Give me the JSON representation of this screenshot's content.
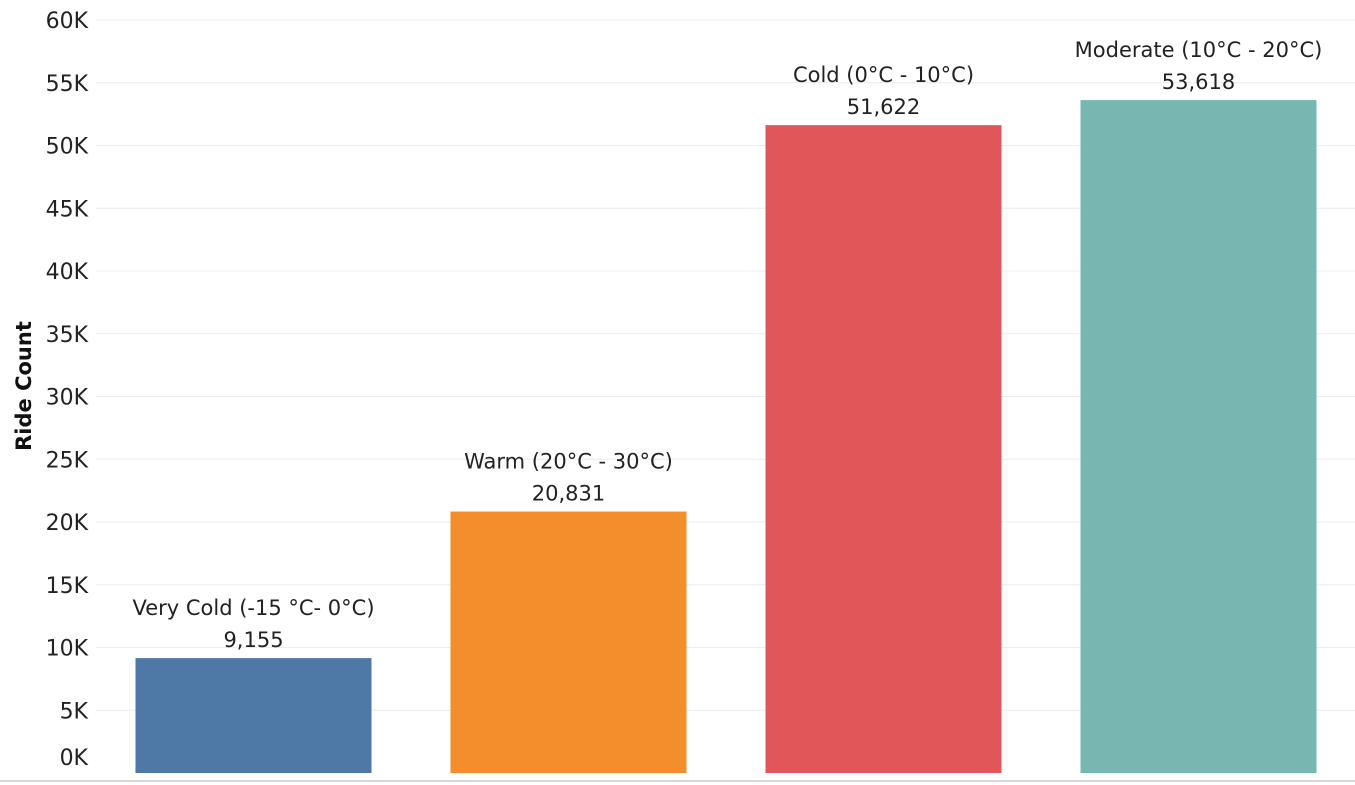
{
  "chart_data": {
    "type": "bar",
    "ylabel": "Ride Count",
    "xlabel": "",
    "ylim": [
      0,
      60000
    ],
    "ytick_values": [
      0,
      5000,
      10000,
      15000,
      20000,
      25000,
      30000,
      35000,
      40000,
      45000,
      50000,
      55000,
      60000
    ],
    "ytick_labels": [
      "0K",
      "5K",
      "10K",
      "15K",
      "20K",
      "25K",
      "30K",
      "35K",
      "40K",
      "45K",
      "50K",
      "55K",
      "60K"
    ],
    "grid": true,
    "legend": "none",
    "categories": [
      "Very Cold (-15 °C- 0°C)",
      "Warm  (20°C - 30°C)",
      "Cold  (0°C - 10°C)",
      "Moderate  (10°C - 20°C)"
    ],
    "values": [
      9155,
      20831,
      51622,
      53618
    ],
    "value_labels": [
      "9,155",
      "20,831",
      "51,622",
      "53,618"
    ],
    "colors": [
      "#4e79a7",
      "#f28e2b",
      "#e15759",
      "#76b7b2"
    ]
  }
}
